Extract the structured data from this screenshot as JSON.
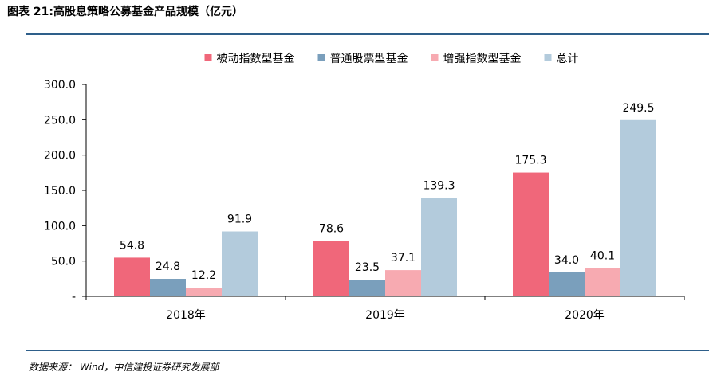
{
  "figure": {
    "title": "图表 21:高股息策略公募基金产品规模（亿元）",
    "source": "数据来源： Wind，中信建投证券研究发展部"
  },
  "chart_data": {
    "type": "bar",
    "title": "",
    "xlabel": "",
    "ylabel": "",
    "categories": [
      "2018年",
      "2019年",
      "2020年"
    ],
    "series": [
      {
        "name": "被动指数型基金",
        "values": [
          54.8,
          78.6,
          175.3
        ],
        "color": "#f0677a"
      },
      {
        "name": "普通股票型基金",
        "values": [
          24.8,
          23.5,
          34.0
        ],
        "color": "#7a9fbc"
      },
      {
        "name": "增强指数型基金",
        "values": [
          12.2,
          37.1,
          40.1
        ],
        "color": "#f7aab1"
      },
      {
        "name": "总计",
        "values": [
          91.9,
          139.3,
          249.5
        ],
        "color": "#b3cbdc"
      }
    ],
    "ylim": [
      0,
      300
    ],
    "yticks": [
      0,
      50,
      100,
      150,
      200,
      250,
      300
    ],
    "ytick_labels": [
      "-",
      "50.0",
      "100.0",
      "150.0",
      "200.0",
      "250.0",
      "300.0"
    ],
    "value_labels": [
      [
        "54.8",
        "78.6",
        "175.3"
      ],
      [
        "24.8",
        "23.5",
        "34.0"
      ],
      [
        "12.2",
        "37.1",
        "40.1"
      ],
      [
        "91.9",
        "139.3",
        "249.5"
      ]
    ],
    "grid": false,
    "legend_position": "top"
  }
}
